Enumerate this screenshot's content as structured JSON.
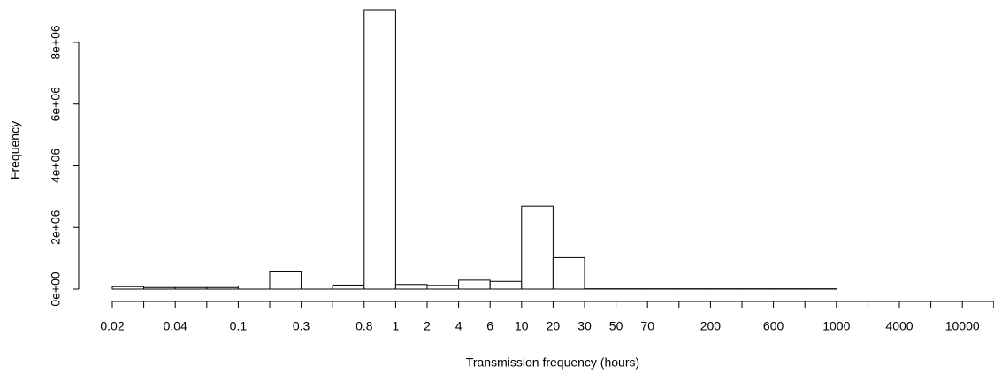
{
  "chart_data": {
    "type": "histogram",
    "x_label": "Transmission frequency (hours)",
    "y_label": "Frequency",
    "bins": [
      0.02,
      null,
      0.04,
      null,
      0.1,
      null,
      0.3,
      null,
      0.8,
      1,
      2,
      4,
      6,
      10,
      20,
      30,
      50,
      70,
      null,
      200,
      null,
      600,
      null,
      1000,
      null,
      4000,
      null,
      10000,
      null
    ],
    "values": [
      80000,
      50000,
      50000,
      50000,
      100000,
      560000,
      100000,
      130000,
      9060000,
      150000,
      120000,
      290000,
      250000,
      2690000,
      1020000,
      10000,
      10000,
      10000,
      10000,
      10000,
      10000,
      10000,
      10000,
      0,
      0,
      0,
      0,
      0
    ],
    "color": "#ffffff",
    "ylim": [
      0,
      9060000
    ],
    "yticks": [
      {
        "value": 0,
        "label": "0e+00"
      },
      {
        "value": 2000000,
        "label": "2e+06"
      },
      {
        "value": 4000000,
        "label": "4e+06"
      },
      {
        "value": 6000000,
        "label": "6e+06"
      },
      {
        "value": 8000000,
        "label": "8e+06"
      }
    ],
    "grid": false
  }
}
